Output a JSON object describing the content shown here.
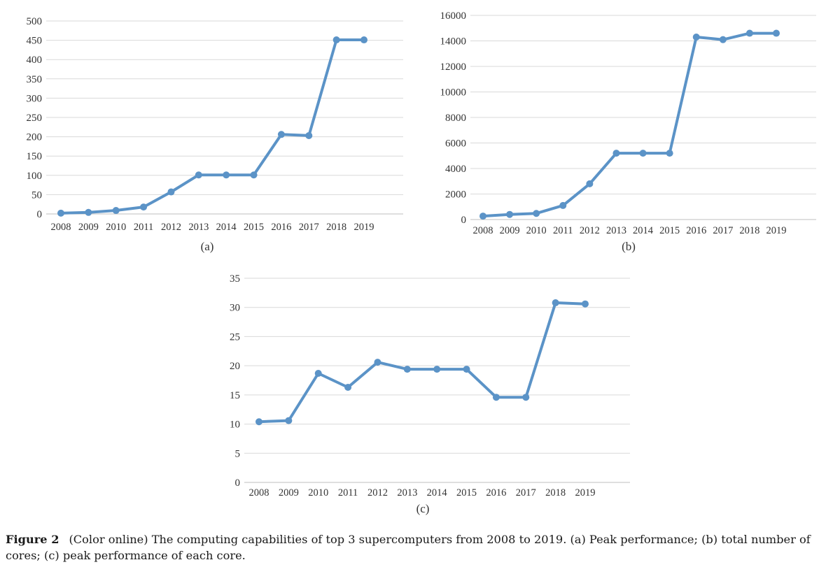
{
  "colors": {
    "series": "#5b93c7"
  },
  "caption": {
    "label": "Figure 2",
    "text": "(Color online) The computing capabilities of top 3 supercomputers from 2008 to 2019. (a) Peak performance; (b) total number of cores; (c) peak performance of each core."
  },
  "chart_data": [
    {
      "type": "line",
      "subtitle": "(a)",
      "categories": [
        "2008",
        "2009",
        "2010",
        "2011",
        "2012",
        "2013",
        "2014",
        "2015",
        "2016",
        "2017",
        "2018",
        "2019"
      ],
      "values": [
        2,
        4,
        9,
        18,
        57,
        101,
        101,
        101,
        206,
        203,
        451,
        451
      ],
      "yticks": [
        0,
        50,
        100,
        150,
        200,
        250,
        300,
        350,
        400,
        450,
        500
      ],
      "ylim": [
        0,
        500
      ],
      "grid": true
    },
    {
      "type": "line",
      "subtitle": "(b)",
      "categories": [
        "2008",
        "2009",
        "2010",
        "2011",
        "2012",
        "2013",
        "2014",
        "2015",
        "2016",
        "2017",
        "2018",
        "2019"
      ],
      "values": [
        270,
        400,
        480,
        1100,
        2800,
        5200,
        5200,
        5200,
        14300,
        14100,
        14600,
        14600
      ],
      "yticks": [
        0,
        2000,
        4000,
        6000,
        8000,
        10000,
        12000,
        14000,
        16000
      ],
      "ylim": [
        0,
        16000
      ],
      "grid": true
    },
    {
      "type": "line",
      "subtitle": "(c)",
      "categories": [
        "2008",
        "2009",
        "2010",
        "2011",
        "2012",
        "2013",
        "2014",
        "2015",
        "2016",
        "2017",
        "2018",
        "2019"
      ],
      "values": [
        10.4,
        10.6,
        18.7,
        16.3,
        20.6,
        19.4,
        19.4,
        19.4,
        14.6,
        14.6,
        30.8,
        30.6
      ],
      "yticks": [
        0,
        5,
        10,
        15,
        20,
        25,
        30,
        35
      ],
      "ylim": [
        0,
        35
      ],
      "grid": true
    }
  ]
}
